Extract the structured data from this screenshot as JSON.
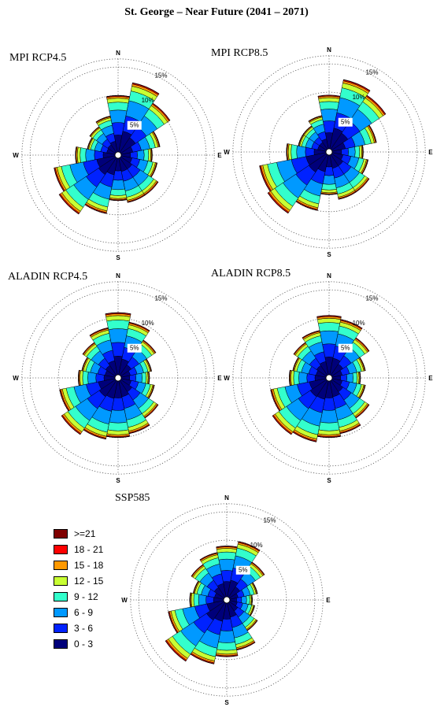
{
  "title": "St. George – Near Future (2041 – 2071)",
  "legend": {
    "items": [
      {
        "label": ">=21",
        "color": "#7f0000"
      },
      {
        "label": "18 - 21",
        "color": "#ff0000"
      },
      {
        "label": "15 - 18",
        "color": "#ff9900"
      },
      {
        "label": "12 - 15",
        "color": "#c8ff33"
      },
      {
        "label": "9 - 12",
        "color": "#33ffcc"
      },
      {
        "label": "6 - 9",
        "color": "#0099ff"
      },
      {
        "label": "3 - 6",
        "color": "#0022ff"
      },
      {
        "label": "0 - 3",
        "color": "#00007a"
      }
    ]
  },
  "chart_data": [
    {
      "type": "windrose",
      "title": "MPI RCP4.5",
      "directions": [
        "N",
        "NNE",
        "NE",
        "ENE",
        "E",
        "ESE",
        "SE",
        "SSE",
        "S",
        "SSW",
        "SW",
        "WSW",
        "W",
        "WNW",
        "NW",
        "NNW"
      ],
      "rings": [
        "5%",
        "10%",
        "15%"
      ],
      "cardinals": {
        "n": "N",
        "e": "E",
        "s": "S",
        "w": "W"
      },
      "speed_bins": [
        "0 - 3",
        "3 - 6",
        "6 - 9",
        "9 - 12",
        "12 - 15",
        "15 - 18",
        "18 - 21",
        ">=21"
      ],
      "totals": [
        10.0,
        12.5,
        10.5,
        7.0,
        5.5,
        6.5,
        8.0,
        8.0,
        7.5,
        10.0,
        12.0,
        11.0,
        7.0,
        5.0,
        5.5,
        6.5
      ]
    },
    {
      "type": "windrose",
      "title": "MPI RCP8.5",
      "directions": [
        "N",
        "NNE",
        "NE",
        "ENE",
        "E",
        "ESE",
        "SE",
        "SSE",
        "S",
        "SSW",
        "SW",
        "WSW",
        "W",
        "WNW",
        "NW",
        "NNW"
      ],
      "rings": [
        "5%",
        "10%",
        "15%"
      ],
      "cardinals": {
        "n": "N",
        "e": "E",
        "s": "S",
        "w": "W"
      },
      "speed_bins": [
        "0 - 3",
        "3 - 6",
        "6 - 9",
        "9 - 12",
        "12 - 15",
        "15 - 18",
        "18 - 21",
        ">=21"
      ],
      "totals": [
        9.5,
        12.5,
        11.5,
        8.0,
        5.5,
        6.5,
        8.0,
        8.0,
        7.0,
        10.0,
        12.5,
        12.0,
        7.0,
        5.0,
        5.0,
        6.0
      ]
    },
    {
      "type": "windrose",
      "title": "ALADIN RCP4.5",
      "directions": [
        "N",
        "NNE",
        "NE",
        "ENE",
        "E",
        "ESE",
        "SE",
        "SSE",
        "S",
        "SSW",
        "SW",
        "WSW",
        "W",
        "WNW",
        "NW",
        "NNW"
      ],
      "rings": [
        "5%",
        "10%",
        "15%"
      ],
      "cardinals": {
        "n": "N",
        "e": "E",
        "s": "S",
        "w": "W"
      },
      "speed_bins": [
        "0 - 3",
        "3 - 6",
        "6 - 9",
        "9 - 12",
        "12 - 15",
        "15 - 18",
        "18 - 21",
        ">=21"
      ],
      "totals": [
        11.0,
        9.5,
        7.5,
        5.5,
        5.0,
        6.0,
        8.0,
        9.5,
        10.0,
        10.5,
        11.5,
        10.0,
        6.5,
        6.0,
        7.0,
        8.5
      ]
    },
    {
      "type": "windrose",
      "title": "ALADIN RCP8.5",
      "directions": [
        "N",
        "NNE",
        "NE",
        "ENE",
        "E",
        "ESE",
        "SE",
        "SSE",
        "S",
        "SSW",
        "SW",
        "WSW",
        "W",
        "WNW",
        "NW",
        "NNW"
      ],
      "rings": [
        "5%",
        "10%",
        "15%"
      ],
      "cardinals": {
        "n": "N",
        "e": "E",
        "s": "S",
        "w": "W"
      },
      "speed_bins": [
        "0 - 3",
        "3 - 6",
        "6 - 9",
        "9 - 12",
        "12 - 15",
        "15 - 18",
        "18 - 21",
        ">=21"
      ],
      "totals": [
        10.5,
        10.0,
        8.0,
        6.0,
        5.0,
        6.0,
        8.0,
        9.5,
        10.0,
        11.0,
        11.5,
        10.0,
        6.5,
        6.0,
        7.0,
        8.0
      ]
    },
    {
      "type": "windrose",
      "title": "SSP585",
      "directions": [
        "N",
        "NNE",
        "NE",
        "ENE",
        "E",
        "ESE",
        "SE",
        "SSE",
        "S",
        "SSW",
        "SW",
        "WSW",
        "W",
        "WNW",
        "NW",
        "NNW"
      ],
      "rings": [
        "5%",
        "10%",
        "15%"
      ],
      "cardinals": {
        "n": "N",
        "e": "E",
        "s": "S",
        "w": "W"
      },
      "speed_bins": [
        "0 - 3",
        "3 - 6",
        "6 - 9",
        "9 - 12",
        "12 - 15",
        "15 - 18",
        "18 - 21",
        ">=21"
      ],
      "totals": [
        9.0,
        10.0,
        7.5,
        5.0,
        4.0,
        4.5,
        6.0,
        8.5,
        9.5,
        11.0,
        12.5,
        10.0,
        6.0,
        5.5,
        7.0,
        8.0
      ]
    }
  ]
}
